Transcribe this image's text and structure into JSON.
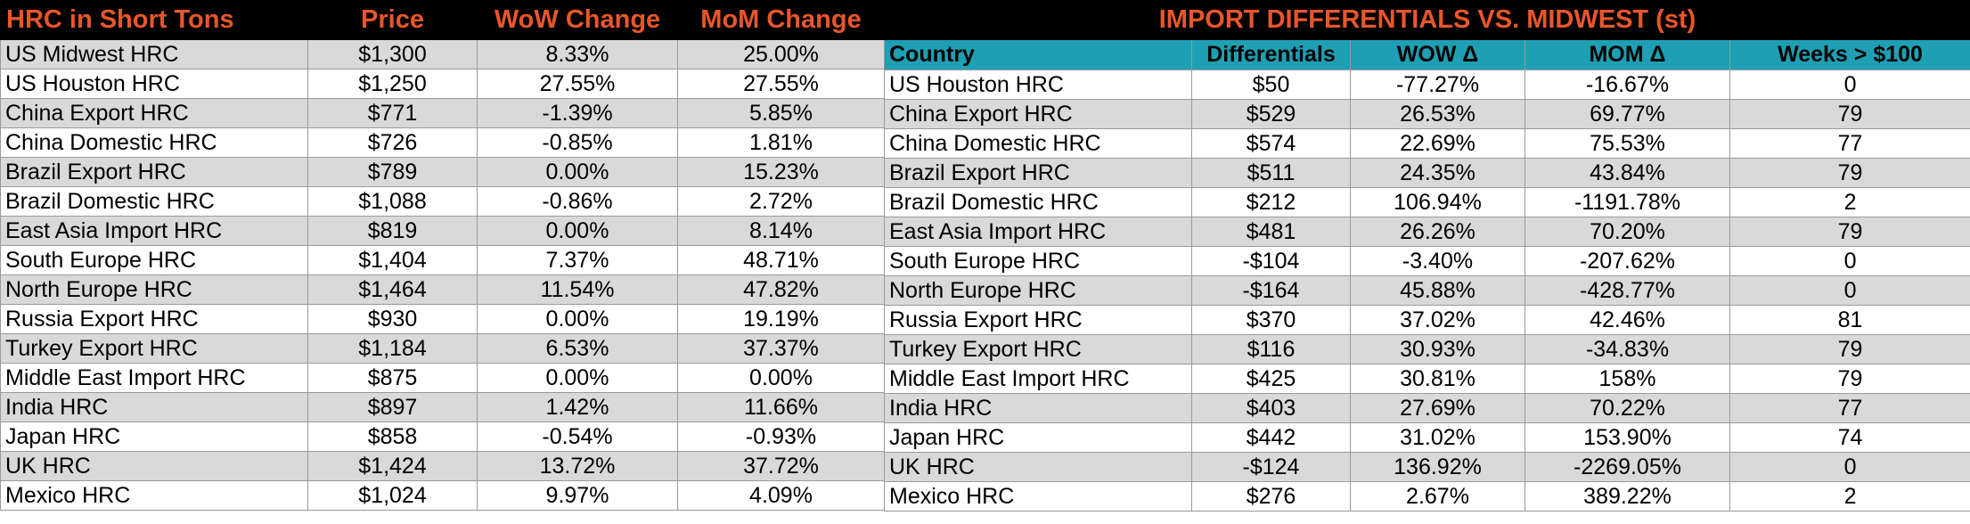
{
  "left_table": {
    "headers": [
      "HRC in Short Tons",
      "Price",
      "WoW Change",
      "MoM Change"
    ],
    "rows": [
      [
        "US Midwest HRC",
        "$1,300",
        "8.33%",
        "25.00%"
      ],
      [
        "US Houston HRC",
        "$1,250",
        "27.55%",
        "27.55%"
      ],
      [
        "China Export HRC",
        "$771",
        "-1.39%",
        "5.85%"
      ],
      [
        "China Domestic HRC",
        "$726",
        "-0.85%",
        "1.81%"
      ],
      [
        "Brazil Export HRC",
        "$789",
        "0.00%",
        "15.23%"
      ],
      [
        "Brazil Domestic HRC",
        "$1,088",
        "-0.86%",
        "2.72%"
      ],
      [
        "East Asia Import HRC",
        "$819",
        "0.00%",
        "8.14%"
      ],
      [
        "South Europe HRC",
        "$1,404",
        "7.37%",
        "48.71%"
      ],
      [
        "North Europe HRC",
        "$1,464",
        "11.54%",
        "47.82%"
      ],
      [
        "Russia Export HRC",
        "$930",
        "0.00%",
        "19.19%"
      ],
      [
        "Turkey Export HRC",
        "$1,184",
        "6.53%",
        "37.37%"
      ],
      [
        "Middle East Import HRC",
        "$875",
        "0.00%",
        "0.00%"
      ],
      [
        "India HRC",
        "$897",
        "1.42%",
        "11.66%"
      ],
      [
        "Japan HRC",
        "$858",
        "-0.54%",
        "-0.93%"
      ],
      [
        "UK HRC",
        "$1,424",
        "13.72%",
        "37.72%"
      ],
      [
        "Mexico HRC",
        "$1,024",
        "9.97%",
        "4.09%"
      ]
    ]
  },
  "right_table": {
    "title": "IMPORT DIFFERENTIALS VS. MIDWEST (st)",
    "headers": [
      "Country",
      "Differentials",
      "WOW Δ",
      "MOM Δ",
      "Weeks > $100"
    ],
    "rows": [
      [
        "US Houston HRC",
        "$50",
        "-77.27%",
        "-16.67%",
        "0"
      ],
      [
        "China Export HRC",
        "$529",
        "26.53%",
        "69.77%",
        "79"
      ],
      [
        "China Domestic HRC",
        "$574",
        "22.69%",
        "75.53%",
        "77"
      ],
      [
        "Brazil Export HRC",
        "$511",
        "24.35%",
        "43.84%",
        "79"
      ],
      [
        "Brazil Domestic HRC",
        "$212",
        "106.94%",
        "-1191.78%",
        "2"
      ],
      [
        "East Asia Import HRC",
        "$481",
        "26.26%",
        "70.20%",
        "79"
      ],
      [
        "South Europe HRC",
        "-$104",
        "-3.40%",
        "-207.62%",
        "0"
      ],
      [
        "North Europe HRC",
        "-$164",
        "45.88%",
        "-428.77%",
        "0"
      ],
      [
        "Russia Export HRC",
        "$370",
        "37.02%",
        "42.46%",
        "81"
      ],
      [
        "Turkey Export HRC",
        "$116",
        "30.93%",
        "-34.83%",
        "79"
      ],
      [
        "Middle East Import HRC",
        "$425",
        "30.81%",
        "158%",
        "79"
      ],
      [
        "India HRC",
        "$403",
        "27.69%",
        "70.22%",
        "77"
      ],
      [
        "Japan HRC",
        "$442",
        "31.02%",
        "153.90%",
        "74"
      ],
      [
        "UK HRC",
        "-$124",
        "136.92%",
        "-2269.05%",
        "0"
      ],
      [
        "Mexico HRC",
        "$276",
        "2.67%",
        "389.22%",
        "2"
      ]
    ]
  },
  "colors": {
    "title_background": "#000000",
    "title_text": "#e8562a",
    "header_background": "#1f9fb4",
    "shaded_row": "#d9d9d9"
  }
}
